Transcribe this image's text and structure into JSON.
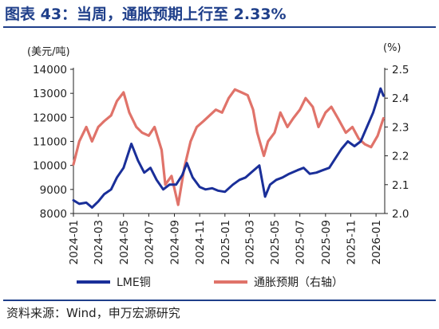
{
  "title": "图表 43：当周，通胀预期上行至 2.33%",
  "source": "资料来源：Wind，申万宏源研究",
  "colors": {
    "copper": "#1a2f99",
    "inflation": "#e0736a",
    "frame": "#1f3f8a"
  },
  "chart_data": {
    "type": "line",
    "left_unit": "(美元/吨)",
    "right_unit": "(%)",
    "left_ylim": [
      8000,
      14000
    ],
    "left_ticks": [
      "14000",
      "13000",
      "12000",
      "11000",
      "10000",
      "9000",
      "8000"
    ],
    "right_ylim": [
      2.0,
      2.5
    ],
    "right_ticks": [
      "2.5",
      "2.4",
      "2.3",
      "2.2",
      "2.1",
      "2.0"
    ],
    "x_ticks": [
      "2024-01",
      "2024-03",
      "2024-05",
      "2024-07",
      "2024-09",
      "2024-11",
      "2025-01",
      "2025-03",
      "2025-05",
      "2025-07",
      "2025-09",
      "2025-11",
      "2026-01"
    ],
    "series": [
      {
        "name": "LME铜",
        "axis": "left",
        "points": [
          [
            "2024-01-01",
            8550
          ],
          [
            "2024-01-15",
            8400
          ],
          [
            "2024-02-01",
            8450
          ],
          [
            "2024-02-15",
            8250
          ],
          [
            "2024-03-01",
            8500
          ],
          [
            "2024-03-15",
            8800
          ],
          [
            "2024-04-01",
            9000
          ],
          [
            "2024-04-15",
            9500
          ],
          [
            "2024-05-01",
            9900
          ],
          [
            "2024-05-20",
            10900
          ],
          [
            "2024-06-05",
            10200
          ],
          [
            "2024-06-20",
            9700
          ],
          [
            "2024-07-05",
            9900
          ],
          [
            "2024-07-20",
            9400
          ],
          [
            "2024-08-05",
            9000
          ],
          [
            "2024-08-20",
            9200
          ],
          [
            "2024-09-05",
            9200
          ],
          [
            "2024-09-20",
            9600
          ],
          [
            "2024-10-01",
            10100
          ],
          [
            "2024-10-15",
            9500
          ],
          [
            "2024-11-01",
            9100
          ],
          [
            "2024-11-15",
            9000
          ],
          [
            "2024-12-01",
            9050
          ],
          [
            "2024-12-15",
            8950
          ],
          [
            "2025-01-01",
            8900
          ],
          [
            "2025-01-20",
            9200
          ],
          [
            "2025-02-05",
            9400
          ],
          [
            "2025-02-20",
            9500
          ],
          [
            "2025-03-05",
            9700
          ],
          [
            "2025-03-25",
            10000
          ],
          [
            "2025-04-08",
            8700
          ],
          [
            "2025-04-20",
            9200
          ],
          [
            "2025-05-05",
            9400
          ],
          [
            "2025-05-20",
            9500
          ],
          [
            "2025-06-05",
            9650
          ],
          [
            "2025-06-25",
            9800
          ],
          [
            "2025-07-10",
            9900
          ],
          [
            "2025-07-25",
            9650
          ],
          [
            "2025-08-10",
            9700
          ],
          [
            "2025-08-25",
            9800
          ],
          [
            "2025-09-10",
            9900
          ],
          [
            "2025-09-25",
            10300
          ],
          [
            "2025-10-10",
            10700
          ],
          [
            "2025-10-25",
            11000
          ],
          [
            "2025-11-10",
            10800
          ],
          [
            "2025-11-25",
            11000
          ],
          [
            "2025-12-10",
            11600
          ],
          [
            "2025-12-25",
            12200
          ],
          [
            "2026-01-05",
            12800
          ],
          [
            "2026-01-12",
            13200
          ],
          [
            "2026-01-19",
            12900
          ]
        ]
      },
      {
        "name": "通胀预期（右轴）",
        "axis": "right",
        "points": [
          [
            "2024-01-01",
            2.17
          ],
          [
            "2024-01-15",
            2.25
          ],
          [
            "2024-02-01",
            2.3
          ],
          [
            "2024-02-15",
            2.25
          ],
          [
            "2024-03-01",
            2.3
          ],
          [
            "2024-03-15",
            2.32
          ],
          [
            "2024-04-01",
            2.34
          ],
          [
            "2024-04-15",
            2.39
          ],
          [
            "2024-05-01",
            2.42
          ],
          [
            "2024-05-15",
            2.35
          ],
          [
            "2024-06-01",
            2.3
          ],
          [
            "2024-06-15",
            2.28
          ],
          [
            "2024-07-01",
            2.27
          ],
          [
            "2024-07-15",
            2.3
          ],
          [
            "2024-08-01",
            2.22
          ],
          [
            "2024-08-10",
            2.1
          ],
          [
            "2024-08-25",
            2.13
          ],
          [
            "2024-09-10",
            2.03
          ],
          [
            "2024-09-25",
            2.16
          ],
          [
            "2024-10-10",
            2.25
          ],
          [
            "2024-10-25",
            2.3
          ],
          [
            "2024-11-10",
            2.32
          ],
          [
            "2024-11-25",
            2.34
          ],
          [
            "2024-12-10",
            2.36
          ],
          [
            "2024-12-25",
            2.35
          ],
          [
            "2025-01-10",
            2.4
          ],
          [
            "2025-01-25",
            2.43
          ],
          [
            "2025-02-10",
            2.42
          ],
          [
            "2025-02-25",
            2.41
          ],
          [
            "2025-03-10",
            2.36
          ],
          [
            "2025-03-20",
            2.28
          ],
          [
            "2025-04-05",
            2.2
          ],
          [
            "2025-04-15",
            2.25
          ],
          [
            "2025-05-01",
            2.28
          ],
          [
            "2025-05-15",
            2.35
          ],
          [
            "2025-06-01",
            2.3
          ],
          [
            "2025-06-15",
            2.33
          ],
          [
            "2025-07-01",
            2.36
          ],
          [
            "2025-07-15",
            2.4
          ],
          [
            "2025-08-01",
            2.37
          ],
          [
            "2025-08-15",
            2.3
          ],
          [
            "2025-09-01",
            2.35
          ],
          [
            "2025-09-15",
            2.37
          ],
          [
            "2025-10-01",
            2.33
          ],
          [
            "2025-10-20",
            2.28
          ],
          [
            "2025-11-05",
            2.3
          ],
          [
            "2025-11-20",
            2.26
          ],
          [
            "2025-12-05",
            2.24
          ],
          [
            "2025-12-20",
            2.23
          ],
          [
            "2026-01-05",
            2.27
          ],
          [
            "2026-01-19",
            2.33
          ]
        ]
      }
    ],
    "grid": false,
    "legend_position": "bottom"
  }
}
